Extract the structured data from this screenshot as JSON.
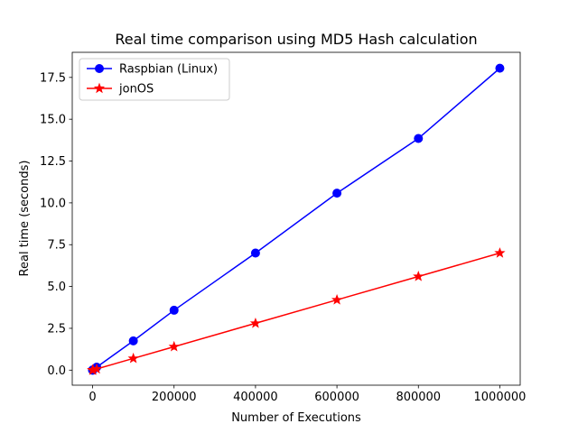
{
  "chart_data": {
    "type": "line",
    "title": "Real time comparison using MD5 Hash calculation",
    "xlabel": "Number of Executions",
    "ylabel": "Real time (seconds)",
    "xlim": [
      -50000,
      1050000
    ],
    "ylim": [
      -0.9,
      19.0
    ],
    "xticks": [
      0,
      200000,
      400000,
      600000,
      800000,
      1000000
    ],
    "yticks": [
      0.0,
      2.5,
      5.0,
      7.5,
      10.0,
      12.5,
      15.0,
      17.5
    ],
    "xtick_labels": [
      "0",
      "200000",
      "400000",
      "600000",
      "800000",
      "1000000"
    ],
    "ytick_labels": [
      "0.0",
      "2.5",
      "5.0",
      "7.5",
      "10.0",
      "12.5",
      "15.0",
      "17.5"
    ],
    "grid": false,
    "legend_position": "upper-left",
    "series": [
      {
        "name": "Raspbian (Linux)",
        "color": "#0000ff",
        "marker": "circle",
        "x": [
          1,
          10,
          100,
          1000,
          10000,
          100000,
          200000,
          400000,
          600000,
          800000,
          1000000
        ],
        "y": [
          0.0,
          0.0,
          0.0,
          0.02,
          0.18,
          1.75,
          3.58,
          7.0,
          10.58,
          13.85,
          18.05
        ]
      },
      {
        "name": "jonOS",
        "color": "#ff0000",
        "marker": "star",
        "x": [
          1,
          10,
          100,
          1000,
          10000,
          100000,
          200000,
          400000,
          600000,
          800000,
          1000000
        ],
        "y": [
          0.0,
          0.0,
          0.0,
          0.01,
          0.07,
          0.7,
          1.4,
          2.8,
          4.2,
          5.6,
          7.0
        ]
      }
    ]
  }
}
